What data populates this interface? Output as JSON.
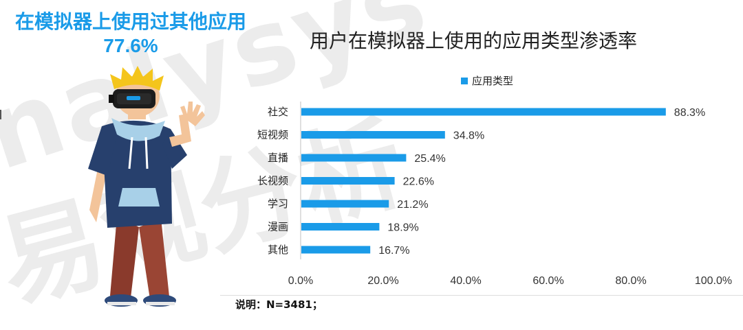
{
  "headline": {
    "line1": "在模拟器上使用过其他应用",
    "line2": "77.6%"
  },
  "watermark": {
    "latin": "nalysys",
    "chinese": "易观分析"
  },
  "colors": {
    "accent": "#1a9be8",
    "bar": "#1a9be8"
  },
  "chart_data": {
    "type": "bar",
    "orientation": "horizontal",
    "title": "用户在模拟器上使用的应用类型渗透率",
    "legend": "应用类型",
    "legend_position": "top-center",
    "categories": [
      "社交",
      "短视频",
      "直播",
      "长视频",
      "学习",
      "漫画",
      "其他"
    ],
    "values": [
      88.3,
      34.8,
      25.4,
      22.6,
      21.2,
      18.9,
      16.7
    ],
    "value_labels": [
      "88.3%",
      "34.8%",
      "25.4%",
      "22.6%",
      "21.2%",
      "18.9%",
      "16.7%"
    ],
    "xlim": [
      0,
      100
    ],
    "xticks": [
      "0.0%",
      "20.0%",
      "40.0%",
      "60.0%",
      "80.0%",
      "100.0%"
    ],
    "grid": false
  },
  "note": "说明：N=3481；"
}
